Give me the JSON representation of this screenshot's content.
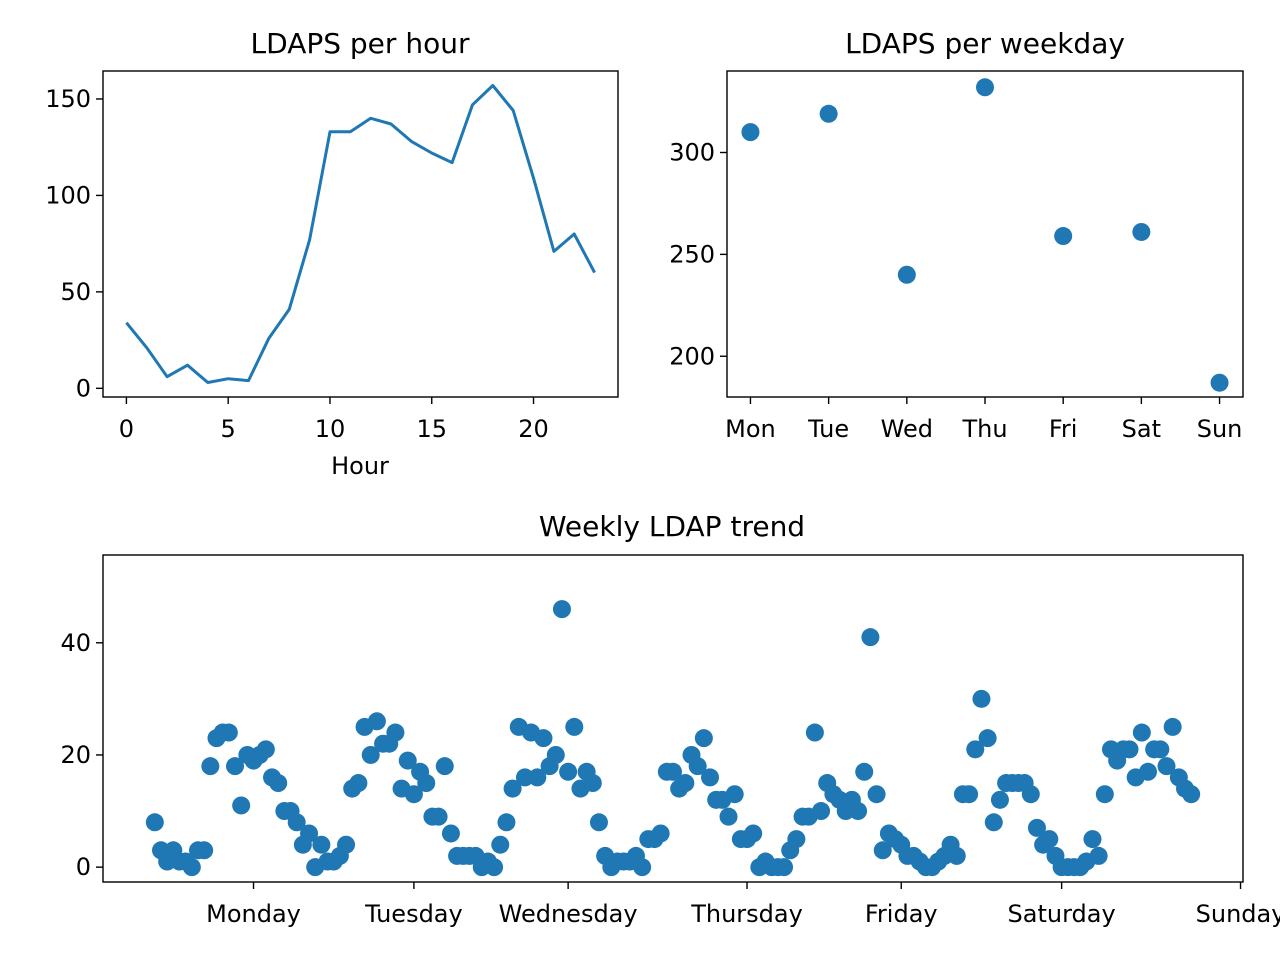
{
  "colors": {
    "series": "#1f77b4",
    "axes": "#000000",
    "background": "#ffffff"
  },
  "chart_data": [
    {
      "id": "hourly",
      "type": "line",
      "title": "LDAPS per hour",
      "xlabel": "Hour",
      "ylabel": "",
      "xlim": [
        -1.15,
        24.15
      ],
      "ylim": [
        -4.5,
        164.5
      ],
      "xticks": [
        0,
        5,
        10,
        15,
        20
      ],
      "yticks": [
        0,
        50,
        100,
        150
      ],
      "x": [
        0,
        1,
        2,
        3,
        4,
        5,
        6,
        7,
        8,
        9,
        10,
        11,
        12,
        13,
        14,
        15,
        16,
        17,
        18,
        19,
        20,
        21,
        22,
        23
      ],
      "values": [
        34,
        21,
        6,
        12,
        3,
        5,
        4,
        26,
        41,
        77,
        133,
        133,
        140,
        137,
        128,
        122,
        117,
        147,
        157,
        144,
        109,
        71,
        80,
        60
      ]
    },
    {
      "id": "weekday",
      "type": "scatter",
      "title": "LDAPS per weekday",
      "xlabel": "",
      "ylabel": "",
      "xlim": [
        -0.3,
        6.3
      ],
      "ylim": [
        180,
        340
      ],
      "categories": [
        "Mon",
        "Tue",
        "Wed",
        "Thu",
        "Fri",
        "Sat",
        "Sun"
      ],
      "yticks": [
        200,
        250,
        300
      ],
      "values": [
        310,
        319,
        240,
        332,
        259,
        261,
        187
      ]
    },
    {
      "id": "weekly",
      "type": "scatter",
      "title": "Weekly LDAP trend",
      "xlabel": "",
      "ylabel": "",
      "xlim": [
        -8.4,
        176.4
      ],
      "ylim": [
        -2.65,
        55.65
      ],
      "yticks": [
        0,
        20,
        40
      ],
      "tick_labels": [
        {
          "label": "Monday",
          "x": 16
        },
        {
          "label": "Tuesday",
          "x": 42
        },
        {
          "label": "Wednesday",
          "x": 67
        },
        {
          "label": "Thursday",
          "x": 96
        },
        {
          "label": "Friday",
          "x": 121
        },
        {
          "label": "Saturday",
          "x": 147
        },
        {
          "label": "Sunday",
          "x": 176
        }
      ],
      "values": [
        8,
        3,
        1,
        3,
        1,
        1,
        0,
        3,
        3,
        18,
        23,
        24,
        24,
        18,
        11,
        20,
        19,
        20,
        21,
        16,
        15,
        10,
        10,
        8,
        4,
        6,
        0,
        4,
        1,
        1,
        2,
        4,
        14,
        15,
        25,
        20,
        26,
        22,
        22,
        24,
        14,
        19,
        13,
        17,
        15,
        9,
        9,
        18,
        6,
        2,
        2,
        2,
        2,
        0,
        1,
        0,
        4,
        8,
        14,
        25,
        16,
        24,
        16,
        23,
        18,
        20,
        46,
        17,
        25,
        14,
        17,
        15,
        8,
        2,
        0,
        1,
        1,
        1,
        2,
        0,
        5,
        5,
        6,
        17,
        17,
        14,
        15,
        20,
        18,
        23,
        16,
        12,
        12,
        9,
        13,
        5,
        5,
        6,
        0,
        1,
        0,
        0,
        0,
        3,
        5,
        9,
        9,
        24,
        10,
        15,
        13,
        12,
        10,
        12,
        10,
        17,
        41,
        13,
        3,
        6,
        5,
        4,
        2,
        2,
        1,
        0,
        0,
        1,
        2,
        4,
        2,
        13,
        13,
        21,
        30,
        23,
        8,
        12,
        15,
        15,
        15,
        15,
        13,
        7,
        4,
        5,
        2,
        0,
        0,
        0,
        0,
        1,
        5,
        2,
        13,
        21,
        19,
        21,
        21,
        16,
        24,
        17,
        21,
        21,
        18,
        25,
        16,
        14,
        13
      ]
    }
  ]
}
